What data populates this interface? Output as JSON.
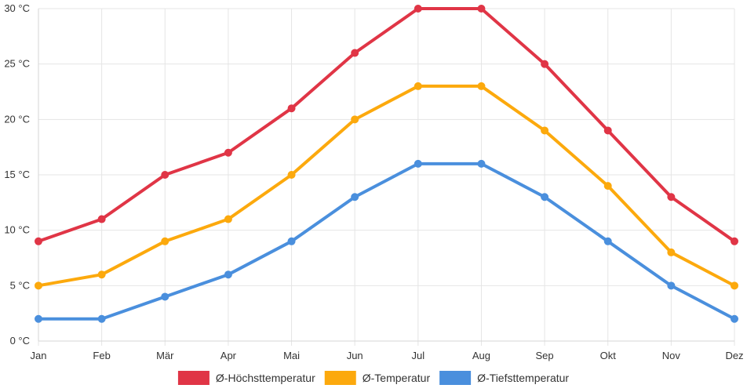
{
  "chart_data": {
    "type": "line",
    "title": "",
    "xlabel": "",
    "ylabel": "",
    "categories": [
      "Jan",
      "Feb",
      "Mär",
      "Apr",
      "Mai",
      "Jun",
      "Jul",
      "Aug",
      "Sep",
      "Okt",
      "Nov",
      "Dez"
    ],
    "ylim": [
      0,
      30
    ],
    "y_ticks": [
      0,
      5,
      10,
      15,
      20,
      25,
      30
    ],
    "y_tick_labels": [
      "0 °C",
      "5 °C",
      "10 °C",
      "15 °C",
      "20 °C",
      "25 °C",
      "30 °C"
    ],
    "grid": true,
    "legend_position": "bottom",
    "series": [
      {
        "name": "Ø-Höchsttemperatur",
        "color": "#e03546",
        "values": [
          9,
          11,
          15,
          17,
          21,
          26,
          30,
          30,
          25,
          19,
          13,
          9
        ]
      },
      {
        "name": "Ø-Temperatur",
        "color": "#fca90d",
        "values": [
          5,
          6,
          9,
          11,
          15,
          20,
          23,
          23,
          19,
          14,
          8,
          5
        ]
      },
      {
        "name": "Ø-Tiefsttemperatur",
        "color": "#4a8fdd",
        "values": [
          2,
          2,
          4,
          6,
          9,
          13,
          16,
          16,
          13,
          9,
          5,
          2
        ]
      }
    ]
  }
}
